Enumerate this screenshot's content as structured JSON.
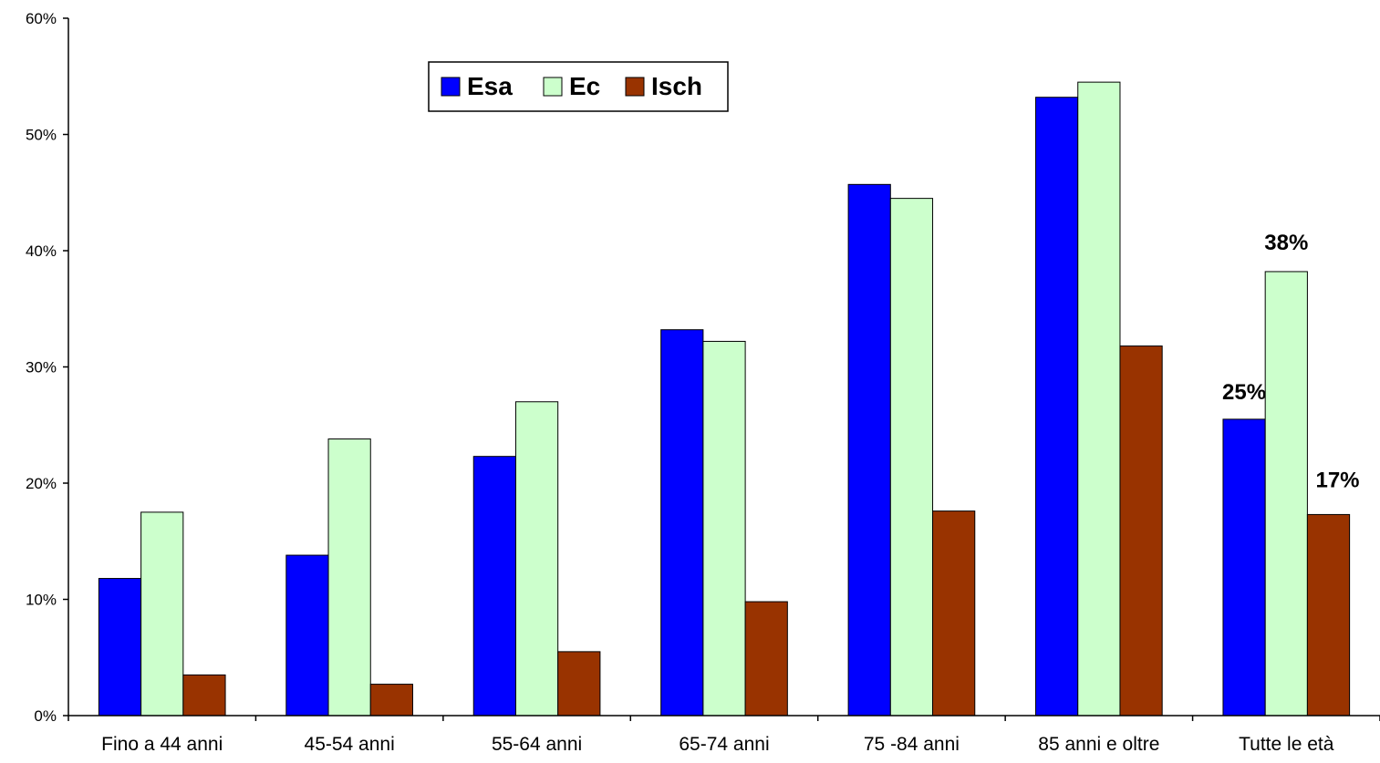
{
  "chart_data": {
    "type": "bar",
    "title": "",
    "xlabel": "",
    "ylabel": "",
    "ylim": [
      0,
      60
    ],
    "yticks": [
      "0%",
      "10%",
      "20%",
      "30%",
      "40%",
      "50%",
      "60%"
    ],
    "grid": false,
    "legend_position": "top-center",
    "categories": [
      "Fino a 44 anni",
      "45-54 anni",
      "55-64 anni",
      "65-74 anni",
      "75 -84 anni",
      "85 anni e oltre",
      "Tutte le età"
    ],
    "series": [
      {
        "name": "Esa",
        "color": "#0000ff",
        "values": [
          11.8,
          13.8,
          22.3,
          33.2,
          45.7,
          53.2,
          25.5
        ]
      },
      {
        "name": "Ec",
        "color": "#ccffcc",
        "values": [
          17.5,
          23.8,
          27.0,
          32.2,
          44.5,
          54.5,
          38.2
        ]
      },
      {
        "name": "Isch",
        "color": "#993300",
        "values": [
          3.5,
          2.7,
          5.5,
          9.8,
          17.6,
          31.8,
          17.3
        ]
      }
    ],
    "data_labels": [
      {
        "series": "Esa",
        "category": "Tutte le età",
        "text": "25%"
      },
      {
        "series": "Ec",
        "category": "Tutte le età",
        "text": "38%"
      },
      {
        "series": "Isch",
        "category": "Tutte le età",
        "text": "17%"
      }
    ]
  }
}
